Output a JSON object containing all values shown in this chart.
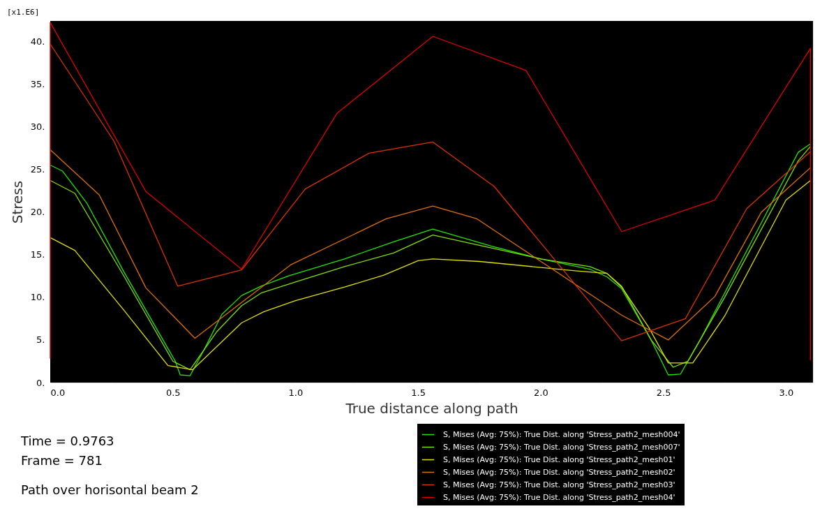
{
  "chart_data": {
    "type": "line",
    "xlabel": "True distance along path",
    "ylabel": "Stress",
    "xlim": [
      0,
      3.11
    ],
    "ylim": [
      0,
      42.4
    ],
    "xticks": [
      {
        "value": 0,
        "label": "0.0"
      },
      {
        "value": 0.25,
        "label": null
      },
      {
        "value": 0.5,
        "label": "0.5"
      },
      {
        "value": 0.75,
        "label": null
      },
      {
        "value": 1,
        "label": "1.0"
      },
      {
        "value": 1.25,
        "label": null
      },
      {
        "value": 1.5,
        "label": "1.5"
      },
      {
        "value": 1.75,
        "label": null
      },
      {
        "value": 2,
        "label": "2.0"
      },
      {
        "value": 2.25,
        "label": null
      },
      {
        "value": 2.5,
        "label": "2.5"
      },
      {
        "value": 2.75,
        "label": null
      },
      {
        "value": 3,
        "label": "3.0"
      }
    ],
    "yticks": [
      {
        "value": 0,
        "label": "0."
      },
      {
        "value": 2.5,
        "label": null
      },
      {
        "value": 5,
        "label": "5."
      },
      {
        "value": 7.5,
        "label": null
      },
      {
        "value": 10,
        "label": "10."
      },
      {
        "value": 12.5,
        "label": null
      },
      {
        "value": 15,
        "label": "15."
      },
      {
        "value": 17.5,
        "label": null
      },
      {
        "value": 20,
        "label": "20."
      },
      {
        "value": 22.5,
        "label": null
      },
      {
        "value": 25,
        "label": "25."
      },
      {
        "value": 27.5,
        "label": null
      },
      {
        "value": 30,
        "label": "30."
      },
      {
        "value": 32.5,
        "label": null
      },
      {
        "value": 35,
        "label": "35."
      },
      {
        "value": 37.5,
        "label": null
      },
      {
        "value": 40,
        "label": "40."
      }
    ],
    "grid": false,
    "legend": "bottom right",
    "marker": "none",
    "line_style": "solid",
    "annotations": [
      "[x1.E6]",
      "Time = 0.9763",
      "Frame = 781",
      "Path over horisontal beam 2"
    ],
    "series": [
      {
        "name": "S, Mises (Avg: 75%): True Dist. along 'Stress_path2_mesh004'",
        "color": "#22e600",
        "x": [
          0,
          0.05,
          0.15,
          0.3,
          0.45,
          0.51,
          0.53,
          0.57,
          0.63,
          0.7,
          0.78,
          0.86,
          0.97,
          1.2,
          1.4,
          1.56,
          1.8,
          2.0,
          2.2,
          2.27,
          2.33,
          2.45,
          2.52,
          2.57,
          2.65,
          2.85,
          3.05,
          3.1
        ],
        "values": [
          25.5,
          24.8,
          21,
          13,
          5.5,
          2.5,
          0.9,
          0.8,
          4,
          8,
          10.2,
          11.3,
          12.5,
          14.5,
          16.5,
          18,
          16,
          14.5,
          13.3,
          12.4,
          11,
          5,
          0.9,
          1.0,
          5,
          16,
          27,
          28
        ]
      },
      {
        "name": "S, Mises (Avg: 75%): True Dist. along 'Stress_path2_mesh007'",
        "color": "#80e000",
        "x": [
          0,
          0.1,
          0.3,
          0.5,
          0.57,
          0.68,
          0.78,
          0.86,
          1.0,
          1.2,
          1.4,
          1.56,
          1.75,
          2.0,
          2.2,
          2.27,
          2.33,
          2.45,
          2.54,
          2.6,
          2.75,
          2.9,
          3.05,
          3.1
        ],
        "values": [
          23.7,
          22.2,
          12.5,
          2.5,
          1.5,
          6,
          9,
          10.5,
          11.8,
          13.6,
          15.2,
          17.3,
          16.1,
          14.5,
          13.6,
          12.8,
          11.3,
          5,
          1.8,
          2.5,
          10,
          18,
          26,
          27.7
        ]
      },
      {
        "name": "S, Mises (Avg: 75%): True Dist. along 'Stress_path2_mesh01'",
        "color": "#e0e000",
        "x": [
          0,
          0.1,
          0.3,
          0.48,
          0.58,
          0.78,
          0.87,
          1.0,
          1.2,
          1.36,
          1.5,
          1.56,
          1.75,
          2.0,
          2.14,
          2.27,
          2.33,
          2.44,
          2.52,
          2.62,
          2.75,
          3.0,
          3.1
        ],
        "values": [
          17,
          15.5,
          8.5,
          2.0,
          1.5,
          7,
          8.3,
          9.6,
          11.2,
          12.6,
          14.3,
          14.5,
          14.2,
          13.5,
          13.1,
          12.8,
          11.2,
          6.5,
          2.3,
          2.3,
          7.8,
          21.4,
          23.7
        ]
      },
      {
        "name": "S, Mises (Avg: 75%): True Dist. along 'Stress_path2_mesh02'",
        "color": "#e07000",
        "x": [
          0,
          0.2,
          0.39,
          0.59,
          0.98,
          1.37,
          1.56,
          1.74,
          2.33,
          2.52,
          2.71,
          2.9,
          3.1
        ],
        "values": [
          27.3,
          22,
          11.1,
          5.2,
          13.8,
          19.2,
          20.7,
          19.2,
          7.9,
          5,
          10.1,
          20,
          25.2
        ]
      },
      {
        "name": "S, Mises (Avg: 75%): True Dist. along 'Stress_path2_mesh03'",
        "color": "#e03000",
        "x": [
          0,
          0.26,
          0.52,
          0.78,
          1.04,
          1.3,
          1.56,
          1.81,
          2.33,
          2.59,
          2.84,
          3.1
        ],
        "values": [
          39.7,
          28.3,
          11.3,
          13.2,
          22.7,
          26.9,
          28.2,
          23,
          4.9,
          7.5,
          20.4,
          27.1
        ]
      },
      {
        "name": "S, Mises (Avg: 75%): True Dist. along 'Stress_path2_mesh04'",
        "color": "#e00000",
        "x": [
          0,
          0,
          0.39,
          0.78,
          1.17,
          1.56,
          1.94,
          2.33,
          2.71,
          3.1,
          3.1
        ],
        "values": [
          2.8,
          42.2,
          22.4,
          13.3,
          31.6,
          40.6,
          36.6,
          17.7,
          21.4,
          39.2,
          2.6
        ]
      }
    ]
  }
}
